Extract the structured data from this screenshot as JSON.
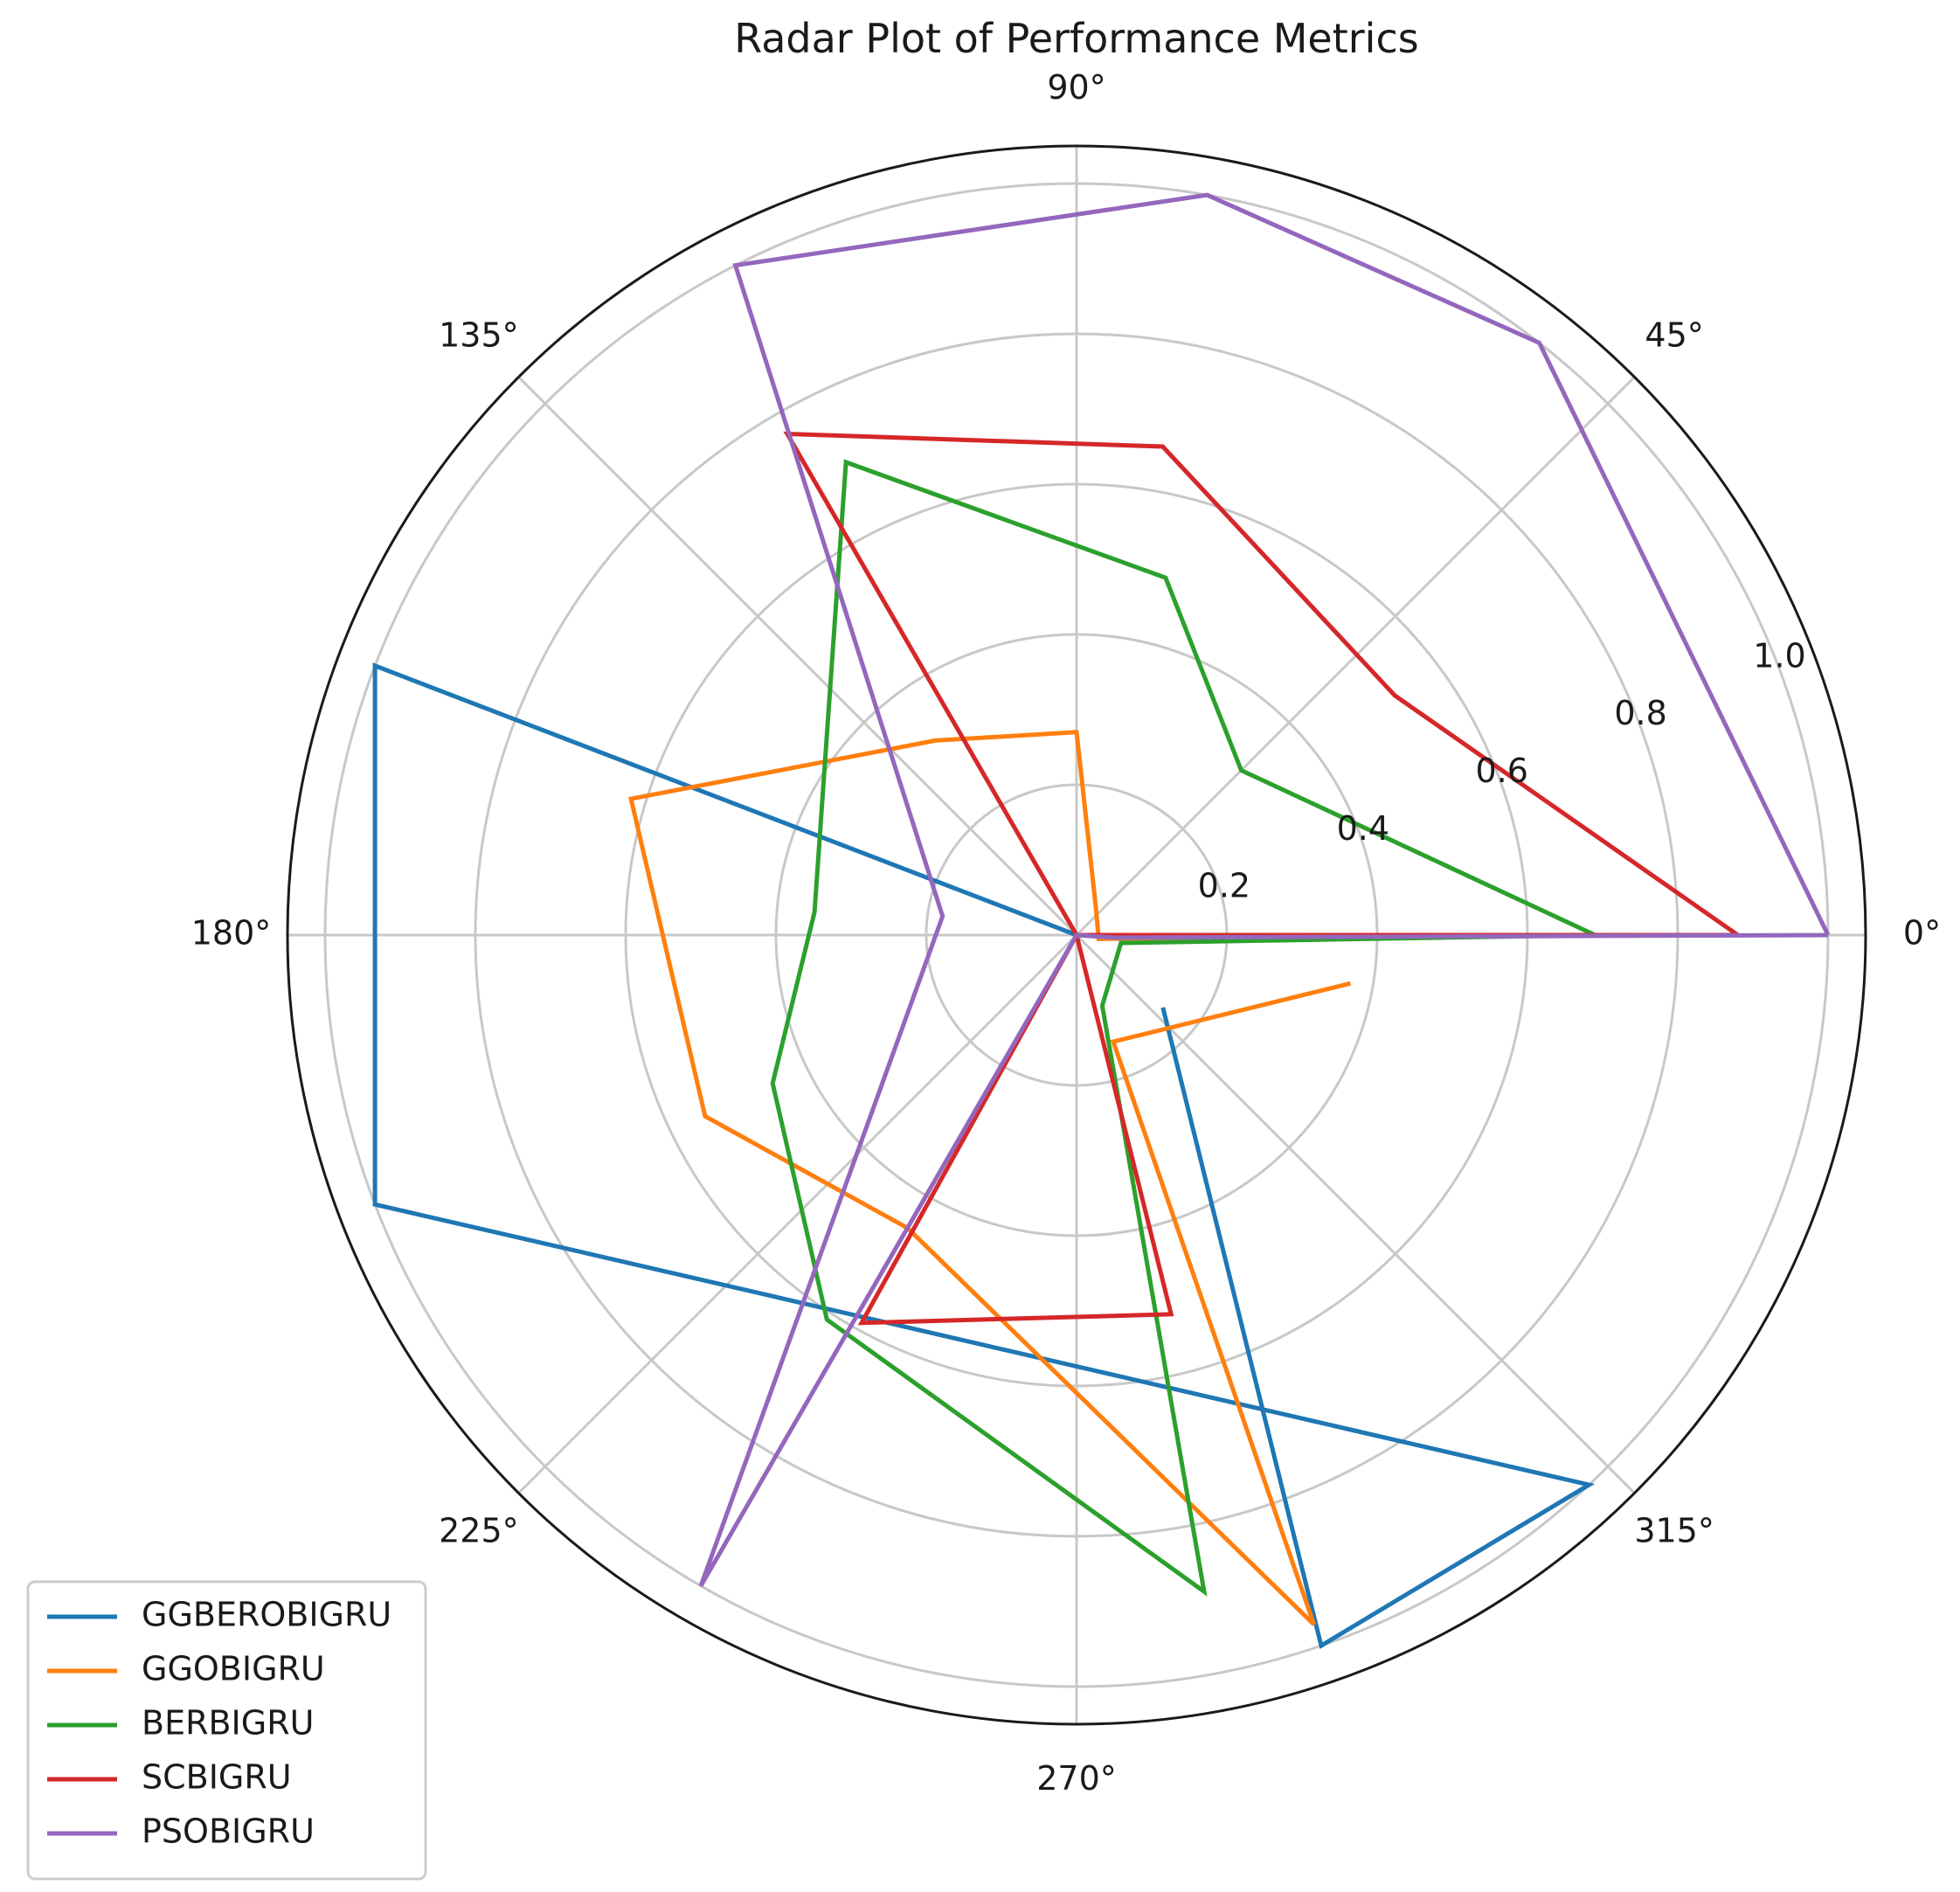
{
  "chart_data": {
    "type": "radar",
    "title": "Radar Plot of Performance Metrics",
    "angle_tick_labels": [
      "0°",
      "45°",
      "90°",
      "135°",
      "180°",
      "225°",
      "270°",
      "315°"
    ],
    "angle_ticks_deg": [
      0,
      45,
      90,
      135,
      180,
      225,
      270,
      315
    ],
    "radial_tick_labels": [
      "0.2",
      "0.4",
      "0.6",
      "0.8",
      "1.0"
    ],
    "radial_ticks": [
      0.2,
      0.4,
      0.6,
      0.8,
      1.0
    ],
    "rmax": 1.05,
    "grid": true,
    "legend_position": "bottom-left",
    "series": [
      {
        "name": "GGBEROBIGRU",
        "color": "#1f77b4",
        "points": [
          {
            "theta": 0,
            "r": 0.0
          },
          {
            "theta": 159,
            "r": 1.0
          },
          {
            "theta": 201,
            "r": 1.0
          },
          {
            "theta": 313,
            "r": 1.0
          },
          {
            "theta": 289,
            "r": 1.0
          },
          {
            "theta": 320,
            "r": 0.15
          }
        ]
      },
      {
        "name": "GGOBIGRU",
        "color": "#ff7f0e",
        "points": [
          {
            "theta": 0,
            "r": 0.37
          },
          {
            "theta": 350,
            "r": 0.03
          },
          {
            "theta": 60,
            "r": 0.05
          },
          {
            "theta": 90,
            "r": 0.27
          },
          {
            "theta": 126,
            "r": 0.32
          },
          {
            "theta": 163,
            "r": 0.62
          },
          {
            "theta": 206,
            "r": 0.55
          },
          {
            "theta": 240,
            "r": 0.45
          },
          {
            "theta": 289,
            "r": 0.97
          },
          {
            "theta": 289,
            "r": 0.15
          },
          {
            "theta": 350,
            "r": 0.37
          }
        ]
      },
      {
        "name": "BERBIGRU",
        "color": "#2ca02c",
        "points": [
          {
            "theta": 0,
            "r": 0.69
          },
          {
            "theta": 350,
            "r": 0.06
          },
          {
            "theta": 290,
            "r": 0.1
          },
          {
            "theta": 281,
            "r": 0.89
          },
          {
            "theta": 237,
            "r": 0.61
          },
          {
            "theta": 206,
            "r": 0.45
          },
          {
            "theta": 175,
            "r": 0.35
          },
          {
            "theta": 116,
            "r": 0.7
          },
          {
            "theta": 76,
            "r": 0.49
          },
          {
            "theta": 45,
            "r": 0.31
          },
          {
            "theta": 0,
            "r": 0.69
          }
        ]
      },
      {
        "name": "SCBIGRU",
        "color": "#d62728",
        "points": [
          {
            "theta": 0,
            "r": 0.88
          },
          {
            "theta": 37,
            "r": 0.53
          },
          {
            "theta": 80,
            "r": 0.66
          },
          {
            "theta": 120,
            "r": 0.77
          },
          {
            "theta": 0,
            "r": 0.0
          },
          {
            "theta": 284,
            "r": 0.52
          },
          {
            "theta": 241,
            "r": 0.59
          },
          {
            "theta": 0,
            "r": 0.0
          },
          {
            "theta": 0,
            "r": 0.88
          }
        ]
      },
      {
        "name": "PSOBIGRU",
        "color": "#9467bd",
        "points": [
          {
            "theta": 0,
            "r": 1.0
          },
          {
            "theta": 356,
            "r": 0.05
          },
          {
            "theta": 0,
            "r": 0.0
          },
          {
            "theta": 240,
            "r": 1.0
          },
          {
            "theta": 172,
            "r": 0.18
          },
          {
            "theta": 117,
            "r": 1.0
          },
          {
            "theta": 80,
            "r": 1.0
          },
          {
            "theta": 52,
            "r": 1.0
          },
          {
            "theta": 0,
            "r": 1.0
          }
        ]
      }
    ]
  }
}
